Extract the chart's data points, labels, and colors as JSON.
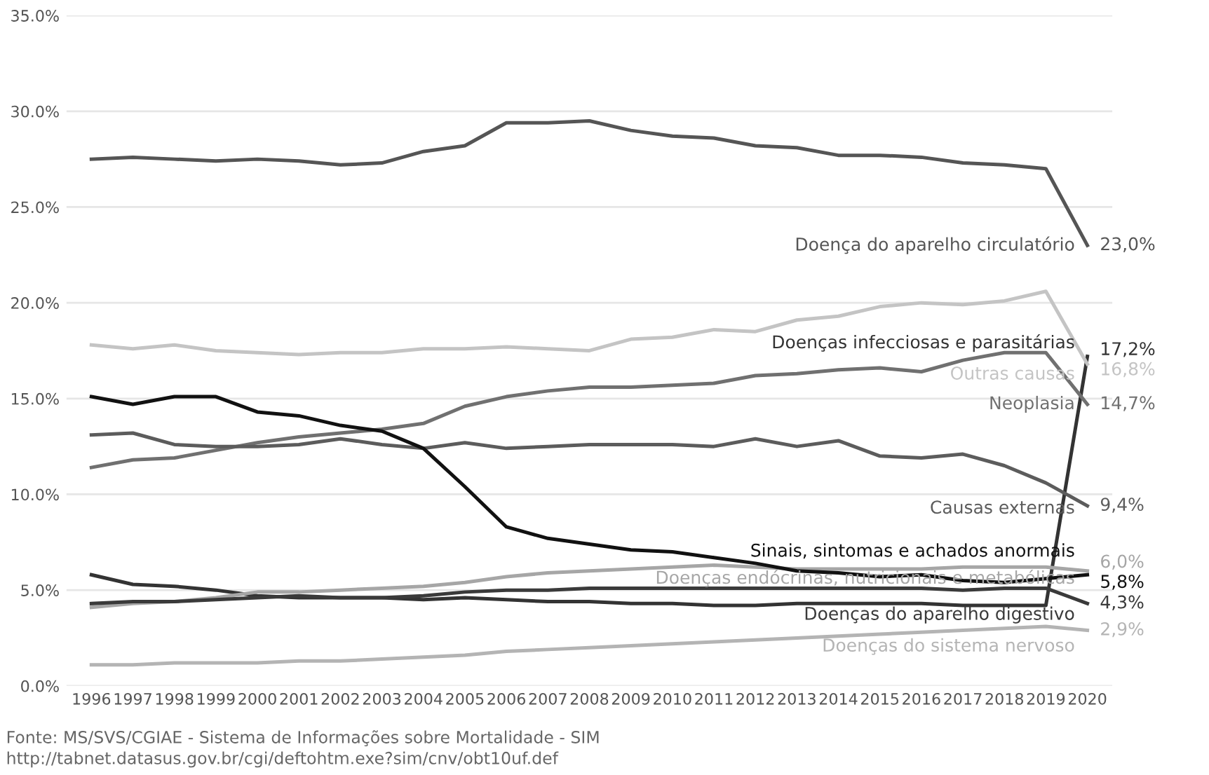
{
  "chart_data": {
    "type": "line",
    "categories": [
      "1996",
      "1997",
      "1998",
      "1999",
      "2000",
      "2001",
      "2002",
      "2003",
      "2004",
      "2005",
      "2006",
      "2007",
      "2008",
      "2009",
      "2010",
      "2011",
      "2012",
      "2013",
      "2014",
      "2015",
      "2016",
      "2017",
      "2018",
      "2019",
      "2020"
    ],
    "ylim": [
      0,
      35
    ],
    "yticks": [
      {
        "value": 0,
        "label": "0.0%"
      },
      {
        "value": 5,
        "label": "5.0%"
      },
      {
        "value": 10,
        "label": "10.0%"
      },
      {
        "value": 15,
        "label": "15.0%"
      },
      {
        "value": 20,
        "label": "20.0%"
      },
      {
        "value": 25,
        "label": "25.0%"
      },
      {
        "value": 30,
        "label": "30.0%"
      },
      {
        "value": 35,
        "label": "35.0%"
      }
    ],
    "grid": "y",
    "legend": false,
    "marker": "none",
    "line_style": "solid",
    "series": [
      {
        "name": "Doença do aparelho circulatório",
        "color": "#555555",
        "values": [
          27.5,
          27.6,
          27.5,
          27.4,
          27.5,
          27.4,
          27.2,
          27.3,
          27.9,
          28.2,
          29.4,
          29.4,
          29.5,
          29.0,
          28.7,
          28.6,
          28.2,
          28.1,
          27.7,
          27.7,
          27.6,
          27.3,
          27.2,
          27.0,
          23.0
        ],
        "value_labels": [
          null,
          null,
          null,
          null,
          null,
          null,
          null,
          null,
          null,
          null,
          null,
          null,
          null,
          null,
          null,
          null,
          null,
          null,
          null,
          null,
          null,
          null,
          null,
          null,
          "23,0%"
        ]
      },
      {
        "name": "Doenças infecciosas e parasitárias",
        "color": "#333333",
        "values": [
          5.8,
          5.3,
          5.2,
          5.0,
          4.7,
          4.6,
          4.6,
          4.6,
          4.5,
          4.6,
          4.5,
          4.4,
          4.4,
          4.3,
          4.3,
          4.2,
          4.2,
          4.3,
          4.3,
          4.3,
          4.3,
          4.2,
          4.2,
          4.2,
          17.2
        ],
        "value_labels": [
          null,
          null,
          null,
          null,
          null,
          null,
          null,
          null,
          null,
          null,
          null,
          null,
          null,
          null,
          null,
          null,
          null,
          null,
          null,
          null,
          null,
          null,
          null,
          null,
          "17,2%"
        ]
      },
      {
        "name": "Outras causas",
        "color": "#c4c4c4",
        "values": [
          17.8,
          17.6,
          17.8,
          17.5,
          17.4,
          17.3,
          17.4,
          17.4,
          17.6,
          17.6,
          17.7,
          17.6,
          17.5,
          18.1,
          18.2,
          18.6,
          18.5,
          19.1,
          19.3,
          19.8,
          20.0,
          19.9,
          20.1,
          20.6,
          16.8
        ],
        "value_labels": [
          null,
          null,
          null,
          null,
          null,
          null,
          null,
          null,
          null,
          null,
          null,
          null,
          null,
          null,
          null,
          null,
          null,
          null,
          null,
          null,
          null,
          null,
          null,
          null,
          "16,8%"
        ]
      },
      {
        "name": "Neoplasia",
        "color": "#707070",
        "values": [
          11.4,
          11.8,
          11.9,
          12.3,
          12.7,
          13.0,
          13.2,
          13.4,
          13.7,
          14.6,
          15.1,
          15.4,
          15.6,
          15.6,
          15.7,
          15.8,
          16.2,
          16.3,
          16.5,
          16.6,
          16.4,
          17.0,
          17.4,
          17.4,
          14.7
        ],
        "value_labels": [
          null,
          null,
          null,
          null,
          null,
          null,
          null,
          null,
          null,
          null,
          null,
          null,
          null,
          null,
          null,
          null,
          null,
          null,
          null,
          null,
          null,
          null,
          null,
          null,
          "14,7%"
        ]
      },
      {
        "name": "Causas externas",
        "color": "#5c5c5c",
        "values": [
          13.1,
          13.2,
          12.6,
          12.5,
          12.5,
          12.6,
          12.9,
          12.6,
          12.4,
          12.7,
          12.4,
          12.5,
          12.6,
          12.6,
          12.6,
          12.5,
          12.9,
          12.5,
          12.8,
          12.0,
          11.9,
          12.1,
          11.5,
          10.6,
          9.4
        ],
        "value_labels": [
          null,
          null,
          null,
          null,
          null,
          null,
          null,
          null,
          null,
          null,
          null,
          null,
          null,
          null,
          null,
          null,
          null,
          null,
          null,
          null,
          null,
          null,
          null,
          null,
          "9,4%"
        ]
      },
      {
        "name": "Doenças endócrinas, nutricionais e metabólicas",
        "color": "#a6a6a6",
        "values": [
          4.1,
          4.3,
          4.4,
          4.6,
          4.9,
          4.9,
          5.0,
          5.1,
          5.2,
          5.4,
          5.7,
          5.9,
          6.0,
          6.1,
          6.2,
          6.3,
          6.2,
          6.1,
          6.1,
          6.1,
          6.1,
          6.2,
          6.2,
          6.2,
          6.0
        ],
        "value_labels": [
          null,
          null,
          null,
          null,
          null,
          null,
          null,
          null,
          null,
          null,
          null,
          null,
          null,
          null,
          null,
          null,
          null,
          null,
          null,
          null,
          null,
          null,
          null,
          null,
          "6,0%"
        ]
      },
      {
        "name": "Sinais, sintomas e achados anormais",
        "color": "#111111",
        "values": [
          15.1,
          14.7,
          15.1,
          15.1,
          14.3,
          14.1,
          13.6,
          13.3,
          12.4,
          10.4,
          8.3,
          7.7,
          7.4,
          7.1,
          7.0,
          6.7,
          6.4,
          6.0,
          5.9,
          5.7,
          5.8,
          5.5,
          5.4,
          5.6,
          5.8
        ],
        "value_labels": [
          null,
          null,
          null,
          null,
          null,
          null,
          null,
          null,
          null,
          null,
          null,
          null,
          null,
          null,
          null,
          null,
          null,
          null,
          null,
          null,
          null,
          null,
          null,
          null,
          "5,8%"
        ]
      },
      {
        "name": "Doenças do aparelho digestivo",
        "color": "#3a3a3a",
        "values": [
          4.3,
          4.4,
          4.4,
          4.5,
          4.6,
          4.7,
          4.6,
          4.6,
          4.7,
          4.9,
          5.0,
          5.0,
          5.1,
          5.1,
          5.1,
          5.1,
          5.1,
          5.1,
          5.1,
          5.1,
          5.1,
          5.0,
          5.1,
          5.1,
          4.3
        ],
        "value_labels": [
          null,
          null,
          null,
          null,
          null,
          null,
          null,
          null,
          null,
          null,
          null,
          null,
          null,
          null,
          null,
          null,
          null,
          null,
          null,
          null,
          null,
          null,
          null,
          null,
          "4,3%"
        ]
      },
      {
        "name": "Doenças do sistema nervoso",
        "color": "#b4b4b4",
        "values": [
          1.1,
          1.1,
          1.2,
          1.2,
          1.2,
          1.3,
          1.3,
          1.4,
          1.5,
          1.6,
          1.8,
          1.9,
          2.0,
          2.1,
          2.2,
          2.3,
          2.4,
          2.5,
          2.6,
          2.7,
          2.8,
          2.9,
          3.0,
          3.1,
          2.9
        ],
        "value_labels": [
          null,
          null,
          null,
          null,
          null,
          null,
          null,
          null,
          null,
          null,
          null,
          null,
          null,
          null,
          null,
          null,
          null,
          null,
          null,
          null,
          null,
          null,
          null,
          null,
          "2,9%"
        ]
      }
    ],
    "annotations": [
      "Fonte: MS/SVS/CGIAE - Sistema de Informações sobre Mortalidade - SIM",
      "http://tabnet.datasus.gov.br/cgi/deftohtm.exe?sim/cnv/obt10uf.def"
    ]
  }
}
